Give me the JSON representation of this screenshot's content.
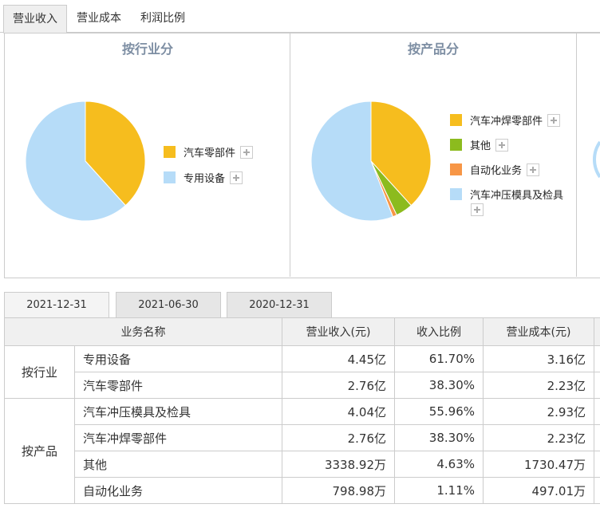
{
  "top_tabs": [
    {
      "label": "营业收入",
      "active": true
    },
    {
      "label": "营业成本",
      "active": false
    },
    {
      "label": "利润比例",
      "active": false
    }
  ],
  "chart_data": [
    {
      "type": "pie",
      "title": "按行业分",
      "labels": [
        "汽车零部件",
        "专用设备"
      ],
      "values": [
        38.3,
        61.7
      ],
      "colors": [
        "#f6bd1e",
        "#b6dcf8"
      ]
    },
    {
      "type": "pie",
      "title": "按产品分",
      "labels": [
        "汽车冲焊零部件",
        "其他",
        "自动化业务",
        "汽车冲压模具及检具"
      ],
      "values": [
        38.3,
        4.63,
        1.11,
        55.96
      ],
      "colors": [
        "#f6bd1e",
        "#8cbb1e",
        "#f79646",
        "#b6dcf8"
      ]
    }
  ],
  "date_tabs": [
    {
      "label": "2021-12-31",
      "active": true
    },
    {
      "label": "2021-06-30",
      "active": false
    },
    {
      "label": "2020-12-31",
      "active": false
    }
  ],
  "table": {
    "headers": [
      "业务名称",
      "营业收入(元)",
      "收入比例",
      "营业成本(元)"
    ],
    "groups": [
      {
        "group": "按行业",
        "rows": [
          {
            "name": "专用设备",
            "revenue": "4.45亿",
            "ratio": "61.70%",
            "cost": "3.16亿"
          },
          {
            "name": "汽车零部件",
            "revenue": "2.76亿",
            "ratio": "38.30%",
            "cost": "2.23亿"
          }
        ]
      },
      {
        "group": "按产品",
        "rows": [
          {
            "name": "汽车冲压模具及检具",
            "revenue": "4.04亿",
            "ratio": "55.96%",
            "cost": "2.93亿"
          },
          {
            "name": "汽车冲焊零部件",
            "revenue": "2.76亿",
            "ratio": "38.30%",
            "cost": "2.23亿"
          },
          {
            "name": "其他",
            "revenue": "3338.92万",
            "ratio": "4.63%",
            "cost": "1730.47万"
          },
          {
            "name": "自动化业务",
            "revenue": "798.98万",
            "ratio": "1.11%",
            "cost": "497.01万"
          }
        ]
      }
    ]
  }
}
